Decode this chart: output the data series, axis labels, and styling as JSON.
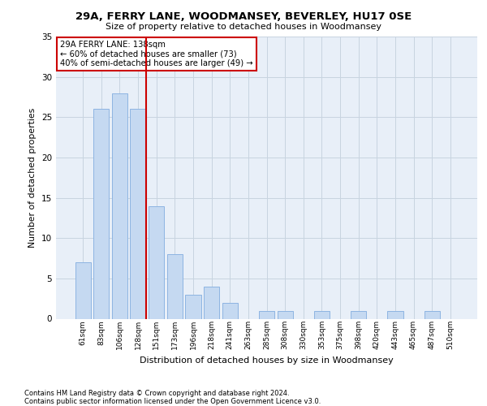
{
  "title1": "29A, FERRY LANE, WOODMANSEY, BEVERLEY, HU17 0SE",
  "title2": "Size of property relative to detached houses in Woodmansey",
  "xlabel": "Distribution of detached houses by size in Woodmansey",
  "ylabel": "Number of detached properties",
  "categories": [
    "61sqm",
    "83sqm",
    "106sqm",
    "128sqm",
    "151sqm",
    "173sqm",
    "196sqm",
    "218sqm",
    "241sqm",
    "263sqm",
    "285sqm",
    "308sqm",
    "330sqm",
    "353sqm",
    "375sqm",
    "398sqm",
    "420sqm",
    "443sqm",
    "465sqm",
    "487sqm",
    "510sqm"
  ],
  "values": [
    7,
    26,
    28,
    26,
    14,
    8,
    3,
    4,
    2,
    0,
    1,
    1,
    0,
    1,
    0,
    1,
    0,
    1,
    0,
    1,
    0
  ],
  "bar_color": "#c5d9f1",
  "bar_edge_color": "#8db4e2",
  "vline_index": 3,
  "vline_color": "#cc0000",
  "annotation_line1": "29A FERRY LANE: 138sqm",
  "annotation_line2": "← 60% of detached houses are smaller (73)",
  "annotation_line3": "40% of semi-detached houses are larger (49) →",
  "annotation_box_facecolor": "#ffffff",
  "annotation_box_edgecolor": "#cc0000",
  "ylim_max": 35,
  "yticks": [
    0,
    5,
    10,
    15,
    20,
    25,
    30,
    35
  ],
  "grid_color": "#c8d4e0",
  "plot_bg_color": "#e8eff8",
  "footer1": "Contains HM Land Registry data © Crown copyright and database right 2024.",
  "footer2": "Contains public sector information licensed under the Open Government Licence v3.0."
}
